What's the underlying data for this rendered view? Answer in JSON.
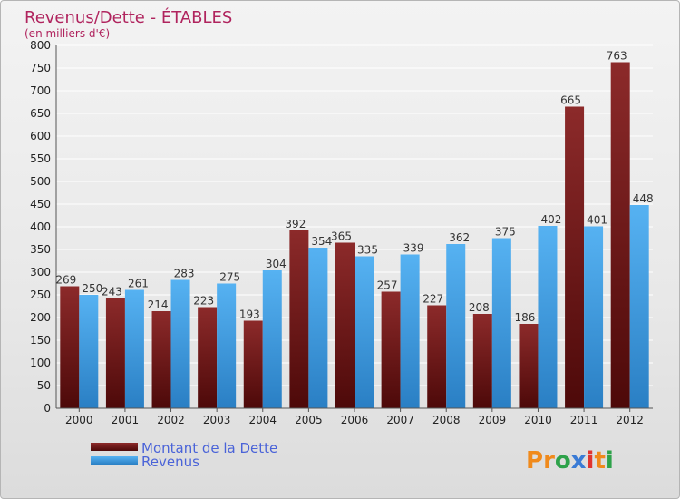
{
  "chart_data": {
    "type": "bar",
    "title": "Revenus/Dette - ÉTABLES",
    "subtitle": "(en milliers d'€)",
    "categories": [
      "2000",
      "2001",
      "2002",
      "2003",
      "2004",
      "2005",
      "2006",
      "2007",
      "2008",
      "2009",
      "2010",
      "2011",
      "2012"
    ],
    "series": [
      {
        "name": "Montant de la Dette",
        "color": "#7a1a1a",
        "values": [
          269,
          243,
          214,
          223,
          193,
          392,
          365,
          257,
          227,
          208,
          186,
          665,
          763
        ]
      },
      {
        "name": "Revenus",
        "color": "#3f9be0",
        "values": [
          250,
          261,
          283,
          275,
          304,
          354,
          335,
          339,
          362,
          375,
          402,
          401,
          448
        ]
      }
    ],
    "ylim": [
      0,
      800
    ],
    "yticks": [
      0,
      50,
      100,
      150,
      200,
      250,
      300,
      350,
      400,
      450,
      500,
      550,
      600,
      650,
      700,
      750,
      800
    ],
    "grid": true,
    "legend": "bottom-left"
  },
  "brand": {
    "letters": [
      "P",
      "r",
      "o",
      "x",
      "i",
      "t",
      "i"
    ],
    "colors": [
      "#f08a1c",
      "#f08a1c",
      "#2ea24a",
      "#3a7bd5",
      "#e0342f",
      "#f08a1c",
      "#2ea24a"
    ]
  }
}
